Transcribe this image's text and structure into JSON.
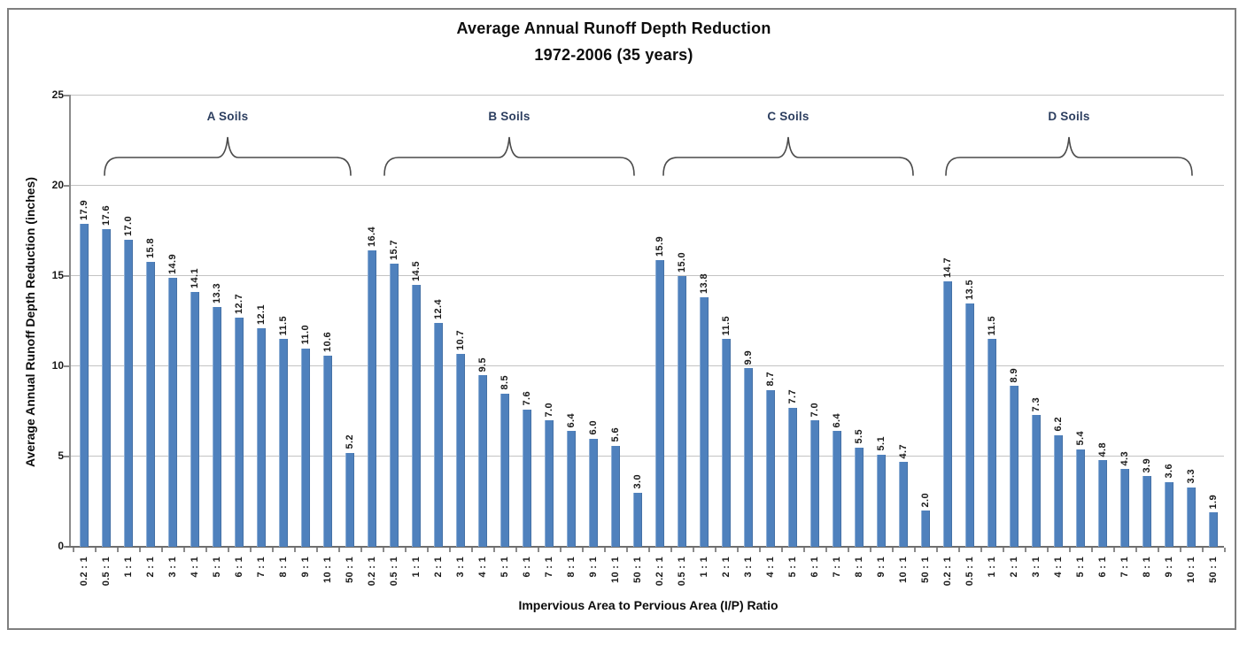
{
  "chart_data": {
    "type": "bar",
    "title": "Average Annual Runoff Depth Reduction",
    "subtitle": "1972-2006 (35 years)",
    "ylabel": "Average Annual Runoff Depth Reduction (inches)",
    "xlabel": "Impervious Area to Pervious Area (I/P) Ratio",
    "ylim": [
      0,
      25
    ],
    "yticks": [
      0,
      5,
      10,
      15,
      20,
      25
    ],
    "grid": "horizontal",
    "legend": "none",
    "bar_color": "#4f81bd",
    "value_label_style": "rotated 90deg, one decimal place, above each bar",
    "category_label_style": "rotated 90deg below axis",
    "categories": [
      "0.2 : 1",
      "0.5 : 1",
      "1 : 1",
      "2 : 1",
      "3 : 1",
      "4 : 1",
      "5 : 1",
      "6 : 1",
      "7 : 1",
      "8 : 1",
      "9 : 1",
      "10 : 1",
      "50 : 1"
    ],
    "series": [
      {
        "name": "A Soils",
        "values": [
          17.9,
          17.6,
          17.0,
          15.8,
          14.9,
          14.1,
          13.3,
          12.7,
          12.1,
          11.5,
          11.0,
          10.6,
          5.2
        ]
      },
      {
        "name": "B Soils",
        "values": [
          16.4,
          15.7,
          14.5,
          12.4,
          10.7,
          9.5,
          8.5,
          7.6,
          7.0,
          6.4,
          6.0,
          5.6,
          3.0
        ]
      },
      {
        "name": "C Soils",
        "values": [
          15.9,
          15.0,
          13.8,
          11.5,
          9.9,
          8.7,
          7.7,
          7.0,
          6.4,
          5.5,
          5.1,
          4.7,
          2.0
        ]
      },
      {
        "name": "D Soils",
        "values": [
          14.7,
          13.5,
          11.5,
          8.9,
          7.3,
          6.2,
          5.4,
          4.8,
          4.3,
          3.9,
          3.6,
          3.3,
          1.9
        ]
      }
    ]
  }
}
